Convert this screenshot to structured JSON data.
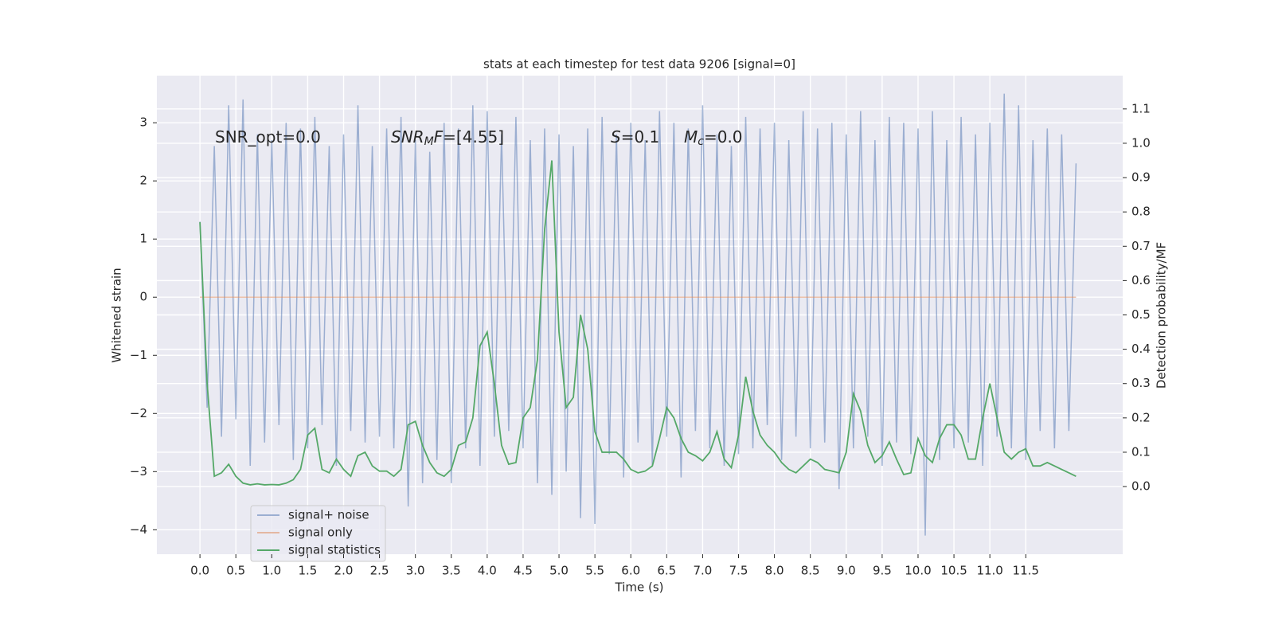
{
  "chart_data": {
    "type": "line",
    "title": "stats at each timestep for test data 9206 [signal=0]",
    "xlabel": "Time (s)",
    "ylabel": "Whitened strain",
    "y2label": "Detection probability/MF",
    "x": [
      0,
      0.1,
      0.2,
      0.3,
      0.4,
      0.5,
      0.6,
      0.7,
      0.8,
      0.9,
      1,
      1.1,
      1.2,
      1.3,
      1.4,
      1.5,
      1.6,
      1.7,
      1.8,
      1.9,
      2,
      2.1,
      2.2,
      2.3,
      2.4,
      2.5,
      2.6,
      2.7,
      2.8,
      2.9,
      3,
      3.1,
      3.2,
      3.3,
      3.4,
      3.5,
      3.6,
      3.7,
      3.8,
      3.9,
      4,
      4.1,
      4.2,
      4.3,
      4.4,
      4.5,
      4.6,
      4.7,
      4.8,
      4.9,
      5,
      5.1,
      5.2,
      5.3,
      5.4,
      5.5,
      5.6,
      5.7,
      5.8,
      5.9,
      6,
      6.1,
      6.2,
      6.3,
      6.4,
      6.5,
      6.6,
      6.7,
      6.8,
      6.9,
      7,
      7.1,
      7.2,
      7.3,
      7.4,
      7.5,
      7.6,
      7.7,
      7.8,
      7.9,
      8,
      8.1,
      8.2,
      8.3,
      8.4,
      8.5,
      8.6,
      8.7,
      8.8,
      8.9,
      9,
      9.1,
      9.2,
      9.3,
      9.4,
      9.5,
      9.6,
      9.7,
      9.8,
      9.9,
      10,
      10.1,
      10.2,
      10.3,
      10.4,
      10.5,
      10.6,
      10.7,
      10.8,
      10.9,
      11,
      11.1,
      11.2,
      11.3,
      11.4,
      11.5,
      11.6,
      11.7,
      11.8,
      11.9,
      12,
      12.1,
      12.2
    ],
    "series": [
      {
        "name": "signal+ noise",
        "color": "#4c72b0",
        "opacity": 0.5,
        "values": [
          1.3,
          -1.9,
          2.6,
          -2.4,
          3.3,
          -2.1,
          3.4,
          -2.9,
          2.8,
          -2.5,
          2.7,
          -2.2,
          3.0,
          -2.8,
          2.9,
          -2.6,
          3.1,
          -2.2,
          2.6,
          -2.9,
          2.8,
          -2.3,
          3.3,
          -2.5,
          2.6,
          -2.4,
          2.9,
          -2.6,
          3.1,
          -3.6,
          2.7,
          -3.2,
          2.5,
          -2.8,
          3.0,
          -3.2,
          2.9,
          -2.6,
          3.3,
          -2.9,
          3.2,
          -2.4,
          2.8,
          -2.3,
          3.1,
          -2.6,
          2.7,
          -3.2,
          2.9,
          -3.4,
          2.8,
          -3.0,
          2.6,
          -3.8,
          2.9,
          -3.9,
          3.1,
          -2.7,
          2.8,
          -3.1,
          3.0,
          -2.5,
          2.7,
          -2.9,
          3.2,
          -2.4,
          3.0,
          -3.1,
          2.9,
          -2.3,
          3.3,
          -2.6,
          2.8,
          -2.9,
          2.6,
          -2.7,
          3.1,
          -2.6,
          2.9,
          -2.2,
          3.0,
          -2.8,
          2.7,
          -2.4,
          3.2,
          -2.6,
          2.9,
          -2.5,
          3.0,
          -3.3,
          2.8,
          -2.6,
          3.2,
          -2.4,
          2.7,
          -2.9,
          3.1,
          -2.5,
          3.0,
          -2.7,
          2.9,
          -4.1,
          3.2,
          -2.8,
          2.7,
          -2.6,
          3.1,
          -2.5,
          2.8,
          -2.9,
          3.0,
          -2.4,
          3.5,
          -2.6,
          3.3,
          -2.8,
          2.7,
          -2.3,
          2.9,
          -2.6,
          2.8,
          -2.3,
          2.3
        ]
      },
      {
        "name": "signal only",
        "color": "#dd8452",
        "opacity": 0.5,
        "values": [
          0,
          0,
          0,
          0,
          0,
          0,
          0,
          0,
          0,
          0,
          0,
          0,
          0,
          0,
          0,
          0,
          0,
          0,
          0,
          0,
          0,
          0,
          0,
          0,
          0,
          0,
          0,
          0,
          0,
          0,
          0,
          0,
          0,
          0,
          0,
          0,
          0,
          0,
          0,
          0,
          0,
          0,
          0,
          0,
          0,
          0,
          0,
          0,
          0,
          0,
          0,
          0,
          0,
          0,
          0,
          0,
          0,
          0,
          0,
          0,
          0,
          0,
          0,
          0,
          0,
          0,
          0,
          0,
          0,
          0,
          0,
          0,
          0,
          0,
          0,
          0,
          0,
          0,
          0,
          0,
          0,
          0,
          0,
          0,
          0,
          0,
          0,
          0,
          0,
          0,
          0,
          0,
          0,
          0,
          0,
          0,
          0,
          0,
          0,
          0,
          0,
          0,
          0,
          0,
          0,
          0,
          0,
          0,
          0,
          0,
          0,
          0,
          0,
          0,
          0,
          0,
          0,
          0,
          0,
          0,
          0,
          0,
          0
        ]
      },
      {
        "name": "signal statistics",
        "color": "#55a868",
        "opacity": 1,
        "axis": "y2",
        "values": [
          0.77,
          0.3,
          0.03,
          0.04,
          0.065,
          0.03,
          0.01,
          0.005,
          0.008,
          0.005,
          0.006,
          0.005,
          0.01,
          0.02,
          0.05,
          0.15,
          0.17,
          0.05,
          0.04,
          0.08,
          0.05,
          0.03,
          0.09,
          0.1,
          0.06,
          0.045,
          0.045,
          0.03,
          0.05,
          0.18,
          0.19,
          0.12,
          0.07,
          0.04,
          0.03,
          0.05,
          0.12,
          0.13,
          0.2,
          0.41,
          0.45,
          0.3,
          0.12,
          0.065,
          0.07,
          0.2,
          0.23,
          0.37,
          0.75,
          0.95,
          0.45,
          0.23,
          0.26,
          0.5,
          0.4,
          0.16,
          0.1,
          0.1,
          0.1,
          0.08,
          0.05,
          0.04,
          0.045,
          0.06,
          0.14,
          0.23,
          0.2,
          0.14,
          0.1,
          0.09,
          0.075,
          0.1,
          0.16,
          0.08,
          0.055,
          0.15,
          0.32,
          0.22,
          0.15,
          0.12,
          0.1,
          0.07,
          0.05,
          0.04,
          0.06,
          0.08,
          0.07,
          0.05,
          0.045,
          0.04,
          0.1,
          0.27,
          0.22,
          0.12,
          0.07,
          0.09,
          0.13,
          0.08,
          0.035,
          0.04,
          0.14,
          0.09,
          0.07,
          0.14,
          0.18,
          0.18,
          0.15,
          0.08,
          0.08,
          0.2,
          0.3,
          0.2,
          0.1,
          0.08,
          0.1,
          0.11,
          0.06,
          0.06,
          0.07,
          0.06,
          0.05,
          0.04,
          0.03
        ]
      }
    ],
    "xlim": [
      -0.6,
      12.85
    ],
    "xticks": [
      {
        "value": 0,
        "label": "0.0"
      },
      0.5,
      {
        "value": 1,
        "label": "1.0"
      },
      1.5,
      {
        "value": 2,
        "label": "2.0"
      },
      2.5,
      {
        "value": 3,
        "label": "3.0"
      },
      3.5,
      {
        "value": 4,
        "label": "4.0"
      },
      4.5,
      {
        "value": 5,
        "label": "5.0"
      },
      5.5,
      {
        "value": 6,
        "label": "6.0"
      },
      6.5,
      {
        "value": 7,
        "label": "7.0"
      },
      7.5,
      {
        "value": 8,
        "label": "8.0"
      },
      8.5,
      {
        "value": 9,
        "label": "9.0"
      },
      9.5,
      {
        "value": 10,
        "label": "10.0"
      },
      10.5,
      {
        "value": 11,
        "label": "11.0"
      },
      11.5
    ],
    "ylim": [
      -4.42,
      3.81
    ],
    "yticks": [
      {
        "value": -4,
        "label": "−4"
      },
      {
        "value": -3,
        "label": "−3"
      },
      {
        "value": -2,
        "label": "−2"
      },
      {
        "value": -1,
        "label": "−1"
      },
      0,
      1,
      2,
      3
    ],
    "y2lim": [
      -0.197,
      1.197
    ],
    "y2ticks": [
      {
        "value": 0,
        "label": "0.0"
      },
      0.1,
      0.2,
      0.3,
      0.4,
      0.5,
      0.6,
      0.7,
      0.8,
      0.9,
      {
        "value": 1,
        "label": "1.0"
      },
      1.1
    ],
    "grid": true,
    "legend": "lower left",
    "annotations": [
      {
        "parts": [
          {
            "text": "SNR_opt=0.0"
          }
        ]
      },
      {
        "parts": [
          {
            "text": "SNR",
            "style": "italic"
          },
          {
            "text": "M",
            "style": "italic-sub"
          },
          {
            "text": "F",
            "style": "italic"
          },
          {
            "text": "=[4.55]"
          }
        ]
      },
      {
        "parts": [
          {
            "text": "S",
            "style": "italic"
          },
          {
            "text": "=0.1"
          }
        ]
      },
      {
        "parts": [
          {
            "text": "M",
            "style": "italic"
          },
          {
            "text": "c",
            "style": "italic-sub"
          },
          {
            "text": "=0.0"
          }
        ]
      }
    ]
  }
}
